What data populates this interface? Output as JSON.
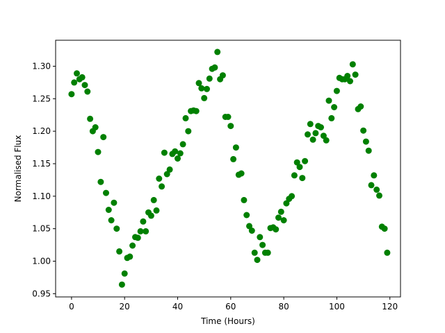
{
  "chart_data": {
    "type": "scatter",
    "title": "",
    "xlabel": "Time (Hours)",
    "ylabel": "Normalised Flux",
    "xlim": [
      -6,
      124
    ],
    "ylim": [
      0.945,
      1.34
    ],
    "xticks": [
      0,
      20,
      40,
      60,
      80,
      100,
      120
    ],
    "yticks": [
      0.95,
      1.0,
      1.05,
      1.1,
      1.15,
      1.2,
      1.25,
      1.3
    ],
    "ytick_labels": [
      "0.95",
      "1.00",
      "1.05",
      "1.10",
      "1.15",
      "1.20",
      "1.25",
      "1.30"
    ],
    "grid": false,
    "legend": "none",
    "marker_color": "#008000",
    "x": [
      0,
      1,
      2,
      3,
      4,
      5,
      6,
      7,
      8,
      9,
      10,
      11,
      12,
      13,
      14,
      15,
      16,
      17,
      18,
      19,
      20,
      21,
      22,
      23,
      24,
      25,
      26,
      27,
      28,
      29,
      30,
      31,
      32,
      33,
      34,
      35,
      36,
      37,
      38,
      39,
      40,
      41,
      42,
      43,
      44,
      45,
      46,
      47,
      48,
      49,
      50,
      51,
      52,
      53,
      54,
      55,
      56,
      57,
      58,
      59,
      60,
      61,
      62,
      63,
      64,
      65,
      66,
      67,
      68,
      69,
      70,
      71,
      72,
      73,
      74,
      75,
      76,
      77,
      78,
      79,
      80,
      81,
      82,
      83,
      84,
      85,
      86,
      87,
      88,
      89,
      90,
      91,
      92,
      93,
      94,
      95,
      96,
      97,
      98,
      99,
      100,
      101,
      102,
      103,
      104,
      105,
      106,
      107,
      108,
      109,
      110,
      111,
      112,
      113,
      114,
      115,
      116,
      117,
      118,
      119
    ],
    "y": [
      1.257,
      1.275,
      1.289,
      1.28,
      1.283,
      1.271,
      1.261,
      1.219,
      1.2,
      1.206,
      1.168,
      1.122,
      1.191,
      1.105,
      1.079,
      1.063,
      1.09,
      1.05,
      1.015,
      0.964,
      0.981,
      1.005,
      1.007,
      1.024,
      1.037,
      1.036,
      1.046,
      1.061,
      1.046,
      1.075,
      1.07,
      1.094,
      1.078,
      1.127,
      1.115,
      1.167,
      1.134,
      1.141,
      1.165,
      1.169,
      1.158,
      1.166,
      1.18,
      1.22,
      1.2,
      1.231,
      1.232,
      1.231,
      1.274,
      1.266,
      1.251,
      1.265,
      1.281,
      1.296,
      1.298,
      1.322,
      1.28,
      1.286,
      1.222,
      1.222,
      1.208,
      1.157,
      1.175,
      1.133,
      1.135,
      1.094,
      1.071,
      1.054,
      1.047,
      1.013,
      1.002,
      1.037,
      1.025,
      1.013,
      1.013,
      1.051,
      1.052,
      1.049,
      1.067,
      1.076,
      1.063,
      1.089,
      1.096,
      1.1,
      1.132,
      1.152,
      1.145,
      1.128,
      1.154,
      1.195,
      1.211,
      1.187,
      1.197,
      1.208,
      1.206,
      1.193,
      1.186,
      1.247,
      1.22,
      1.237,
      1.262,
      1.282,
      1.28,
      1.28,
      1.285,
      1.277,
      1.303,
      1.287,
      1.234,
      1.238,
      1.201,
      1.184,
      1.17,
      1.117,
      1.132,
      1.11,
      1.101,
      1.053,
      1.05,
      1.013
    ]
  }
}
